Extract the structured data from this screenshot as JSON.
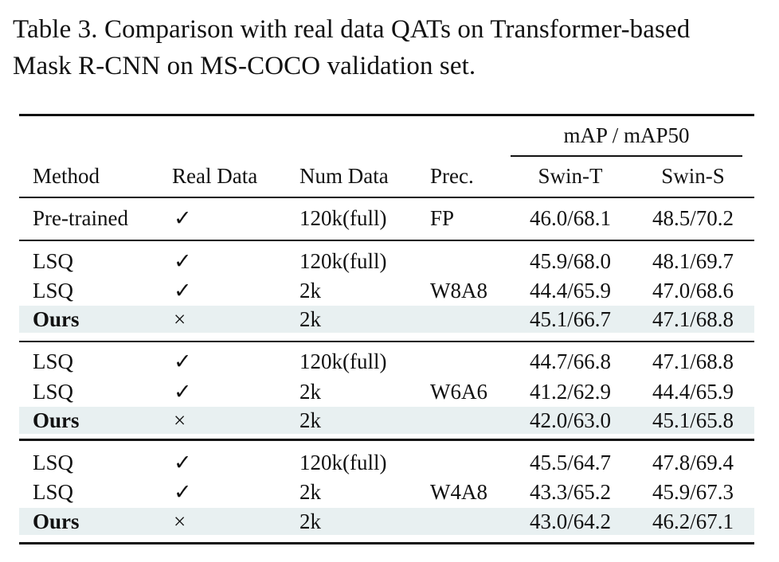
{
  "caption": {
    "line1": "Table 3.  Comparison with real data QATs on Transformer-based",
    "line2": "Mask R-CNN on MS-COCO validation set."
  },
  "table": {
    "group_header": "mAP / mAP50",
    "headers": {
      "method": "Method",
      "real_data": "Real Data",
      "num_data": "Num Data",
      "prec": "Prec.",
      "swin_t": "Swin-T",
      "swin_s": "Swin-S"
    },
    "pretrained": {
      "method": "Pre-trained",
      "real_data": "✓",
      "num_data": "120k(full)",
      "prec": "FP",
      "swin_t": "46.0/68.1",
      "swin_s": "48.5/70.2"
    },
    "groups": [
      {
        "prec": "W8A8",
        "rows": [
          {
            "method": "LSQ",
            "real_data": "✓",
            "num_data": "120k(full)",
            "swin_t": "45.9/68.0",
            "swin_s": "48.1/69.7"
          },
          {
            "method": "LSQ",
            "real_data": "✓",
            "num_data": "2k",
            "swin_t": "44.4/65.9",
            "swin_s": "47.0/68.6"
          },
          {
            "method": "Ours",
            "real_data": "×",
            "num_data": "2k",
            "swin_t": "45.1/66.7",
            "swin_s": "47.1/68.8"
          }
        ]
      },
      {
        "prec": "W6A6",
        "rows": [
          {
            "method": "LSQ",
            "real_data": "✓",
            "num_data": "120k(full)",
            "swin_t": "44.7/66.8",
            "swin_s": "47.1/68.8"
          },
          {
            "method": "LSQ",
            "real_data": "✓",
            "num_data": "2k",
            "swin_t": "41.2/62.9",
            "swin_s": "44.4/65.9"
          },
          {
            "method": "Ours",
            "real_data": "×",
            "num_data": "2k",
            "swin_t": "42.0/63.0",
            "swin_s": "45.1/65.8"
          }
        ]
      },
      {
        "prec": "W4A8",
        "rows": [
          {
            "method": "LSQ",
            "real_data": "✓",
            "num_data": "120k(full)",
            "swin_t": "45.5/64.7",
            "swin_s": "47.8/69.4"
          },
          {
            "method": "LSQ",
            "real_data": "✓",
            "num_data": "2k",
            "swin_t": "43.3/65.2",
            "swin_s": "45.9/67.3"
          },
          {
            "method": "Ours",
            "real_data": "×",
            "num_data": "2k",
            "swin_t": "43.0/64.2",
            "swin_s": "46.2/67.1"
          }
        ]
      }
    ]
  },
  "colors": {
    "highlight_row": "#e8f0f1",
    "rule": "#111111"
  }
}
